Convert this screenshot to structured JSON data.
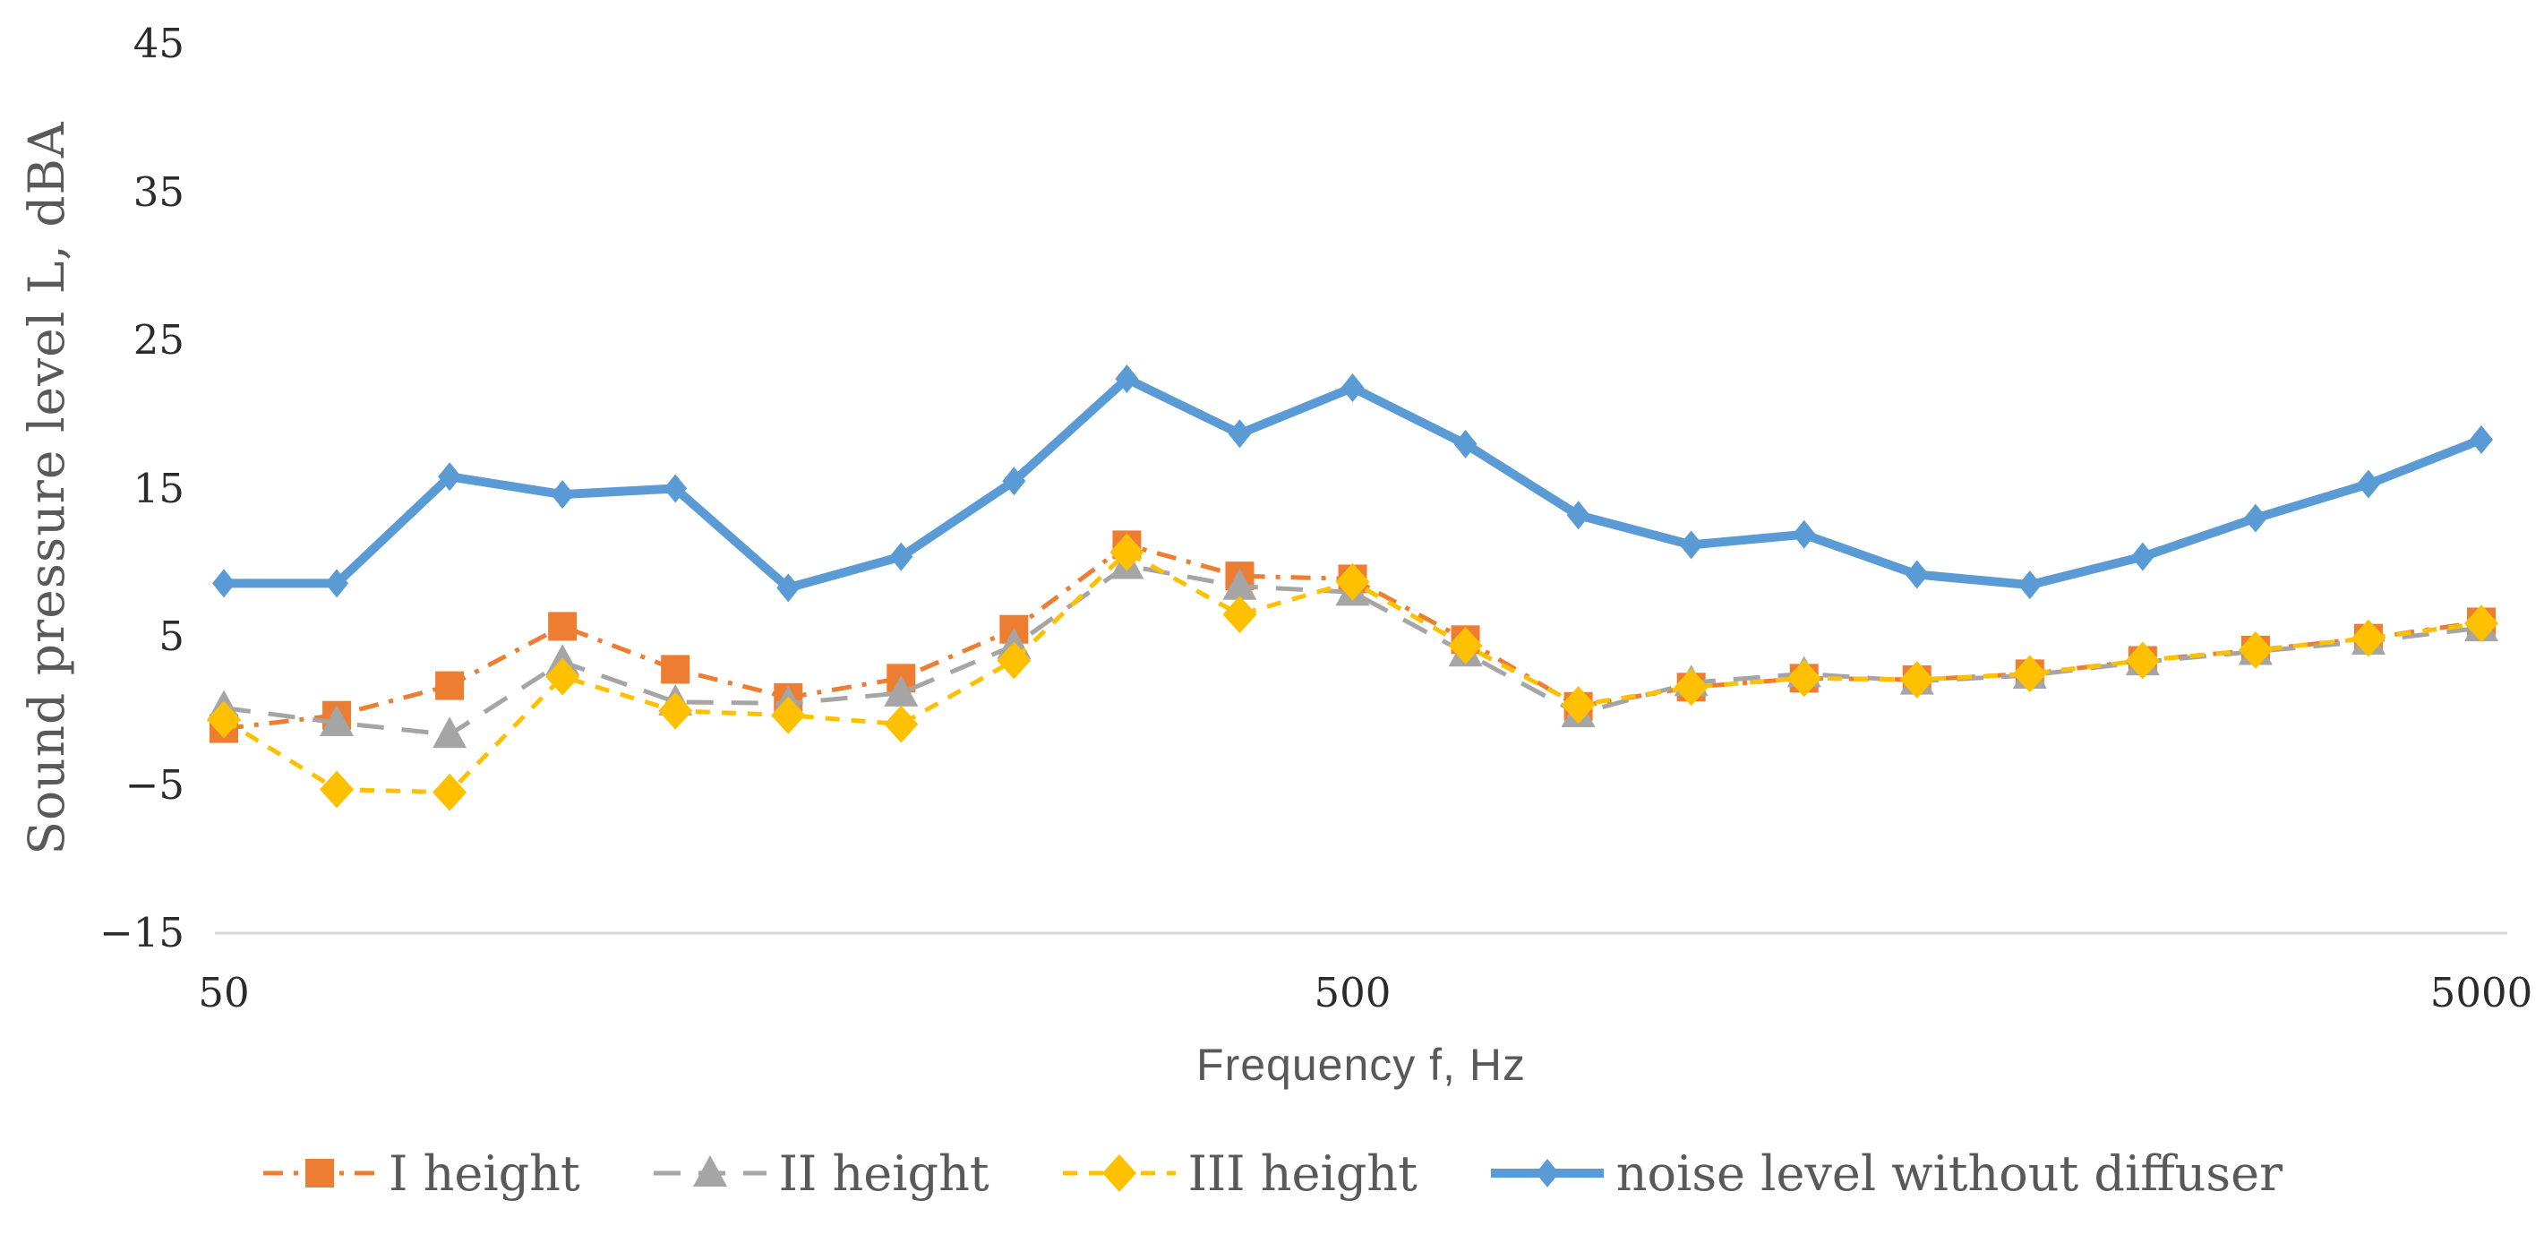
{
  "chart_data": {
    "type": "line",
    "title": "",
    "xlabel": "Frequency f, Hz",
    "ylabel": "Sound pressure level L, dBA",
    "x_scale": "log",
    "grid": false,
    "legend_position": "bottom",
    "ylim": [
      -15,
      45
    ],
    "y_tick_step": 10,
    "x": [
      50,
      63,
      80,
      100,
      125,
      160,
      200,
      250,
      315,
      400,
      500,
      630,
      800,
      1000,
      1250,
      1600,
      2000,
      2500,
      3150,
      4000,
      5000
    ],
    "y_ticks": [
      {
        "label": "45",
        "value": 45
      },
      {
        "label": "35",
        "value": 35
      },
      {
        "label": "25",
        "value": 25
      },
      {
        "label": "15",
        "value": 15
      },
      {
        "label": "5",
        "value": 5
      },
      {
        "label": "−5",
        "value": -5
      },
      {
        "label": "−15",
        "value": -15
      }
    ],
    "x_ticks": [
      {
        "label": "50",
        "index": 0
      },
      {
        "label": "500",
        "index": 10
      },
      {
        "label": "5000",
        "index": 20
      }
    ],
    "series": [
      {
        "name": "I height",
        "color": "#ED7D31",
        "marker": "square",
        "line_style": "dash-dot",
        "values": [
          -1.2,
          -0.3,
          1.7,
          5.7,
          2.8,
          0.9,
          2.2,
          5.5,
          11.2,
          9.1,
          8.9,
          4.8,
          0.3,
          1.6,
          2.2,
          2.1,
          2.5,
          3.4,
          4.1,
          4.9,
          6.0
        ]
      },
      {
        "name": "II height",
        "color": "#A5A5A5",
        "marker": "triangle",
        "line_style": "long-dash",
        "values": [
          0.2,
          -0.8,
          -1.6,
          3.3,
          0.6,
          0.5,
          1.2,
          4.4,
          9.8,
          8.4,
          8.0,
          3.9,
          -0.2,
          1.9,
          2.5,
          2.0,
          2.4,
          3.3,
          4.0,
          4.7,
          5.6
        ]
      },
      {
        "name": "III height",
        "color": "#FFC000",
        "marker": "diamond",
        "line_style": "dash",
        "values": [
          -0.6,
          -5.3,
          -5.5,
          2.3,
          0.0,
          -0.3,
          -0.9,
          3.4,
          10.7,
          6.5,
          8.7,
          4.4,
          0.4,
          1.6,
          2.2,
          2.1,
          2.5,
          3.4,
          4.1,
          4.9,
          5.9
        ]
      },
      {
        "name": "noise level without diffuser",
        "color": "#5B9BD5",
        "marker": "small-diamond",
        "line_style": "solid",
        "values": [
          8.6,
          8.6,
          15.8,
          14.6,
          15.0,
          8.3,
          10.4,
          15.5,
          22.4,
          18.7,
          21.8,
          18.0,
          13.2,
          11.2,
          11.9,
          9.2,
          8.5,
          10.4,
          13.0,
          15.3,
          18.3
        ]
      }
    ],
    "axis_line_color": "#D9D9D9"
  }
}
